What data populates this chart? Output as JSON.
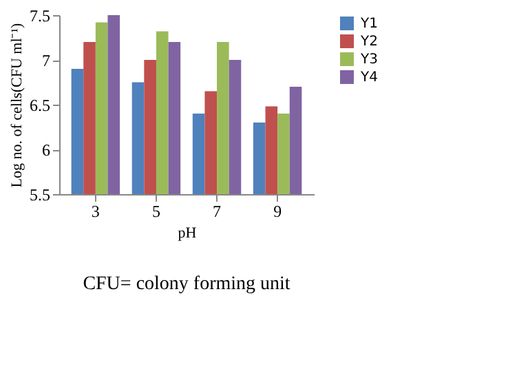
{
  "chart_data": {
    "type": "bar",
    "xlabel": "pH",
    "ylabel": "Log no. of cells(CFU ml⁻¹)",
    "categories": [
      "3",
      "5",
      "7",
      "9"
    ],
    "series": [
      {
        "name": "Y1",
        "color": "#4f81bd",
        "values": [
          6.9,
          6.75,
          6.4,
          6.3
        ]
      },
      {
        "name": "Y2",
        "color": "#c0504d",
        "values": [
          7.2,
          7.0,
          6.65,
          6.48
        ]
      },
      {
        "name": "Y3",
        "color": "#9bbb59",
        "values": [
          7.42,
          7.32,
          7.2,
          6.4
        ]
      },
      {
        "name": "Y4",
        "color": "#8064a2",
        "values": [
          7.5,
          7.2,
          7.0,
          6.7
        ]
      }
    ],
    "ylim": [
      5.5,
      7.5
    ],
    "yticks": [
      5.5,
      6,
      6.5,
      7,
      7.5
    ],
    "grid": false,
    "legend": "right",
    "annotations": [
      "CFU= colony forming unit"
    ]
  }
}
